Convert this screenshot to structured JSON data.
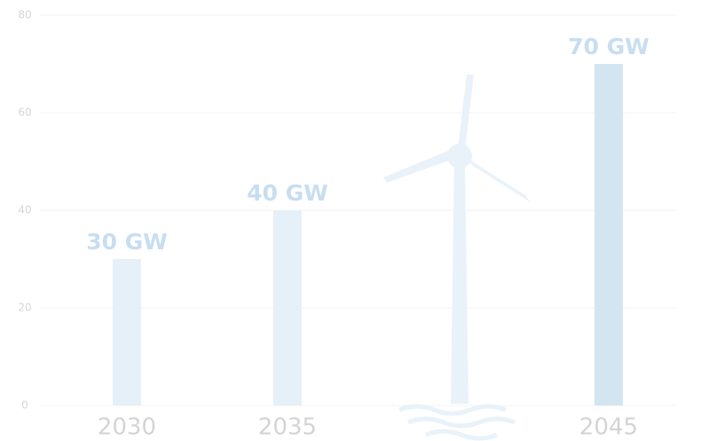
{
  "chart_data": {
    "type": "bar",
    "categories": [
      "2030",
      "2035",
      null,
      "2045"
    ],
    "values": [
      30,
      40,
      null,
      70
    ],
    "value_labels": [
      "30 GW",
      "40 GW",
      null,
      "70 GW"
    ],
    "colors": [
      "#e6f0f8",
      "#e6f0f8",
      null,
      "#d3e5f1"
    ],
    "ylim": [
      0,
      80
    ],
    "yticks": [
      0,
      20,
      40,
      60,
      80
    ],
    "grid": true
  }
}
